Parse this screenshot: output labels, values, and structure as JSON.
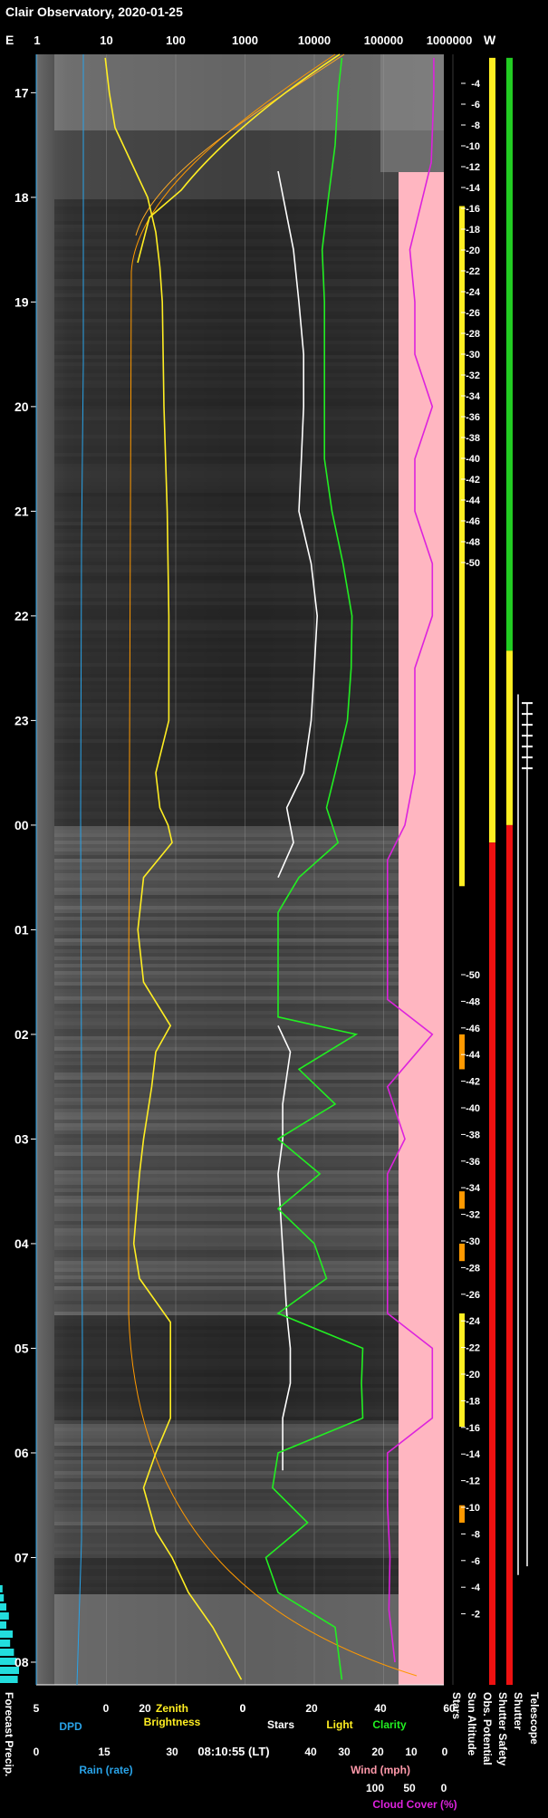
{
  "chart_data": {
    "type": "line",
    "title": "Clair Observatory, 2020-01-25",
    "top_axis": {
      "left_label": "E",
      "right_label": "W",
      "ticks": [
        "1",
        "10",
        "100",
        "1000",
        "10000",
        "100000",
        "1000000"
      ],
      "scale": "log"
    },
    "time_ticks": [
      "17",
      "18",
      "19",
      "20",
      "21",
      "22",
      "23",
      "00",
      "01",
      "02",
      "03",
      "04",
      "05",
      "06",
      "07",
      "08"
    ],
    "sun_altitude": {
      "label": "Sun Altitude",
      "evening_ticks": [
        "-4",
        "-6",
        "-8",
        "-10",
        "-12",
        "-14",
        "-16",
        "-18",
        "-20",
        "-22",
        "-24",
        "-26",
        "-28",
        "-30",
        "-32",
        "-34",
        "-36",
        "-38",
        "-40",
        "-42",
        "-44",
        "-46",
        "-48",
        "-50"
      ],
      "morning_ticks": [
        "-50",
        "-48",
        "-46",
        "-44",
        "-42",
        "-40",
        "-38",
        "-36",
        "-34",
        "-32",
        "-30",
        "-28",
        "-26",
        "-24",
        "-22",
        "-20",
        "-18",
        "-16",
        "-14",
        "-12",
        "-10",
        "-8",
        "-6",
        "-4",
        "-2"
      ]
    },
    "bottom_scales": [
      {
        "name": "DPD",
        "ticks": [
          "5",
          "0"
        ],
        "color": "#29a3e8"
      },
      {
        "name": "Zenith Brightness",
        "ticks": [
          "20",
          "0"
        ],
        "color": "#ffee22"
      },
      {
        "name": "Stars",
        "ticks": [
          "0",
          "20",
          "40",
          "60"
        ],
        "color": "#ffffff"
      },
      {
        "name": "Light",
        "color": "#ffee22"
      },
      {
        "name": "Clarity",
        "color": "#22ee22"
      },
      {
        "name": "Rain (rate)",
        "ticks": [
          "0",
          "15",
          "30"
        ],
        "color": "#29a3e8"
      },
      {
        "name": "Wind (mph)",
        "ticks": [
          "40",
          "30",
          "20",
          "10",
          "0"
        ],
        "color": "#ff99aa"
      },
      {
        "name": "Cloud Cover (%)",
        "ticks": [
          "100",
          "50",
          "0"
        ],
        "color": "#dd22dd"
      }
    ],
    "timestamp": "08:10:55 (LT)",
    "column_labels": [
      "Stars",
      "Sun Altitude",
      "Obs. Potential",
      "Shutter Safety",
      "Shutter",
      "Telescope"
    ],
    "forecast_label": "Forecast Precip.",
    "series": [
      {
        "name": "Stars",
        "time": [
          "17:45",
          "18:30",
          "19:00",
          "19:30",
          "20:00",
          "20:30",
          "21:00",
          "21:30",
          "22:00",
          "22:30",
          "23:00",
          "23:30",
          "23:50",
          "00:10",
          "00:30"
        ],
        "values": [
          3000,
          5000,
          6000,
          7000,
          7000,
          6500,
          6000,
          9000,
          11000,
          10000,
          9000,
          7000,
          4000,
          5000,
          3000
        ]
      },
      {
        "name": "Stars",
        "time": [
          "01:55",
          "02:10",
          "02:40",
          "03:00",
          "03:20",
          "04:40",
          "05:00",
          "05:20",
          "05:40",
          "06:10"
        ],
        "values": [
          3000,
          4500,
          3500,
          3500,
          3000,
          4000,
          4500,
          4500,
          3500,
          3500
        ]
      },
      {
        "name": "Clarity",
        "time": [
          "16:40",
          "17:00",
          "17:30",
          "18:00",
          "18:30",
          "19:00",
          "20:00",
          "20:30",
          "21:00",
          "21:30",
          "22:00",
          "22:30",
          "23:00",
          "23:30",
          "23:50",
          "00:10",
          "00:30",
          "00:50",
          "01:30",
          "01:50",
          "02:00",
          "02:20",
          "02:40",
          "03:00",
          "03:20",
          "03:40",
          "04:00",
          "04:20",
          "04:40",
          "05:00",
          "05:20",
          "05:40",
          "06:00",
          "06:20",
          "06:40",
          "07:00",
          "07:20",
          "07:40",
          "08:10"
        ],
        "values": [
          25000,
          22000,
          20000,
          16000,
          13000,
          14000,
          14000,
          14000,
          18000,
          26000,
          35000,
          34000,
          30000,
          20000,
          15000,
          22000,
          6000,
          3000,
          3000,
          3000,
          40000,
          6000,
          20000,
          3000,
          12000,
          3000,
          10000,
          15000,
          3000,
          50000,
          48000,
          50000,
          3000,
          2500,
          8000,
          2000,
          3000,
          20000,
          25000
        ]
      },
      {
        "name": "Cloud Cover",
        "time": [
          "16:40",
          "17:00",
          "17:40",
          "18:30",
          "19:00",
          "19:30",
          "20:00",
          "20:30",
          "21:00",
          "21:30",
          "22:00",
          "22:30",
          "23:00",
          "23:30",
          "00:00",
          "00:20",
          "00:40",
          "01:00",
          "01:40",
          "02:00",
          "02:30",
          "03:00",
          "03:20",
          "03:40",
          "04:00",
          "04:20",
          "04:40",
          "05:00",
          "05:40",
          "06:00",
          "06:30",
          "07:00",
          "07:30",
          "08:00"
        ],
        "values": [
          2,
          2,
          7,
          50,
          40,
          40,
          5,
          40,
          40,
          5,
          5,
          40,
          40,
          40,
          60,
          95,
          95,
          95,
          95,
          5,
          95,
          60,
          95,
          95,
          95,
          95,
          95,
          5,
          5,
          95,
          95,
          90,
          92,
          80
        ]
      },
      {
        "name": "Zenith Brightness",
        "time": [
          "16:40",
          "17:00",
          "17:20",
          "17:40",
          "18:00",
          "18:20",
          "18:40",
          "19:00",
          "20:00",
          "21:00",
          "22:00",
          "23:00",
          "23:30",
          "23:50",
          "00:00",
          "00:10",
          "00:30",
          "01:00",
          "01:30",
          "01:55",
          "02:10",
          "02:30",
          "03:00",
          "03:20",
          "04:00",
          "04:20",
          "04:45",
          "05:00",
          "05:40",
          "06:00",
          "06:20",
          "06:45",
          "07:00",
          "07:20",
          "07:40",
          "08:10"
        ],
        "values": [
          1.8,
          2.3,
          3.0,
          5.0,
          7.0,
          8.0,
          8.5,
          8.8,
          9.0,
          9.4,
          9.6,
          9.6,
          8.0,
          8.5,
          9.5,
          10,
          6.5,
          5.8,
          6.5,
          9.8,
          8.0,
          7.5,
          6.5,
          6.0,
          5.3,
          6.0,
          9.8,
          9.8,
          9.8,
          8.0,
          6.5,
          8.0,
          10.0,
          12.0,
          15.0,
          18.5
        ]
      }
    ]
  }
}
